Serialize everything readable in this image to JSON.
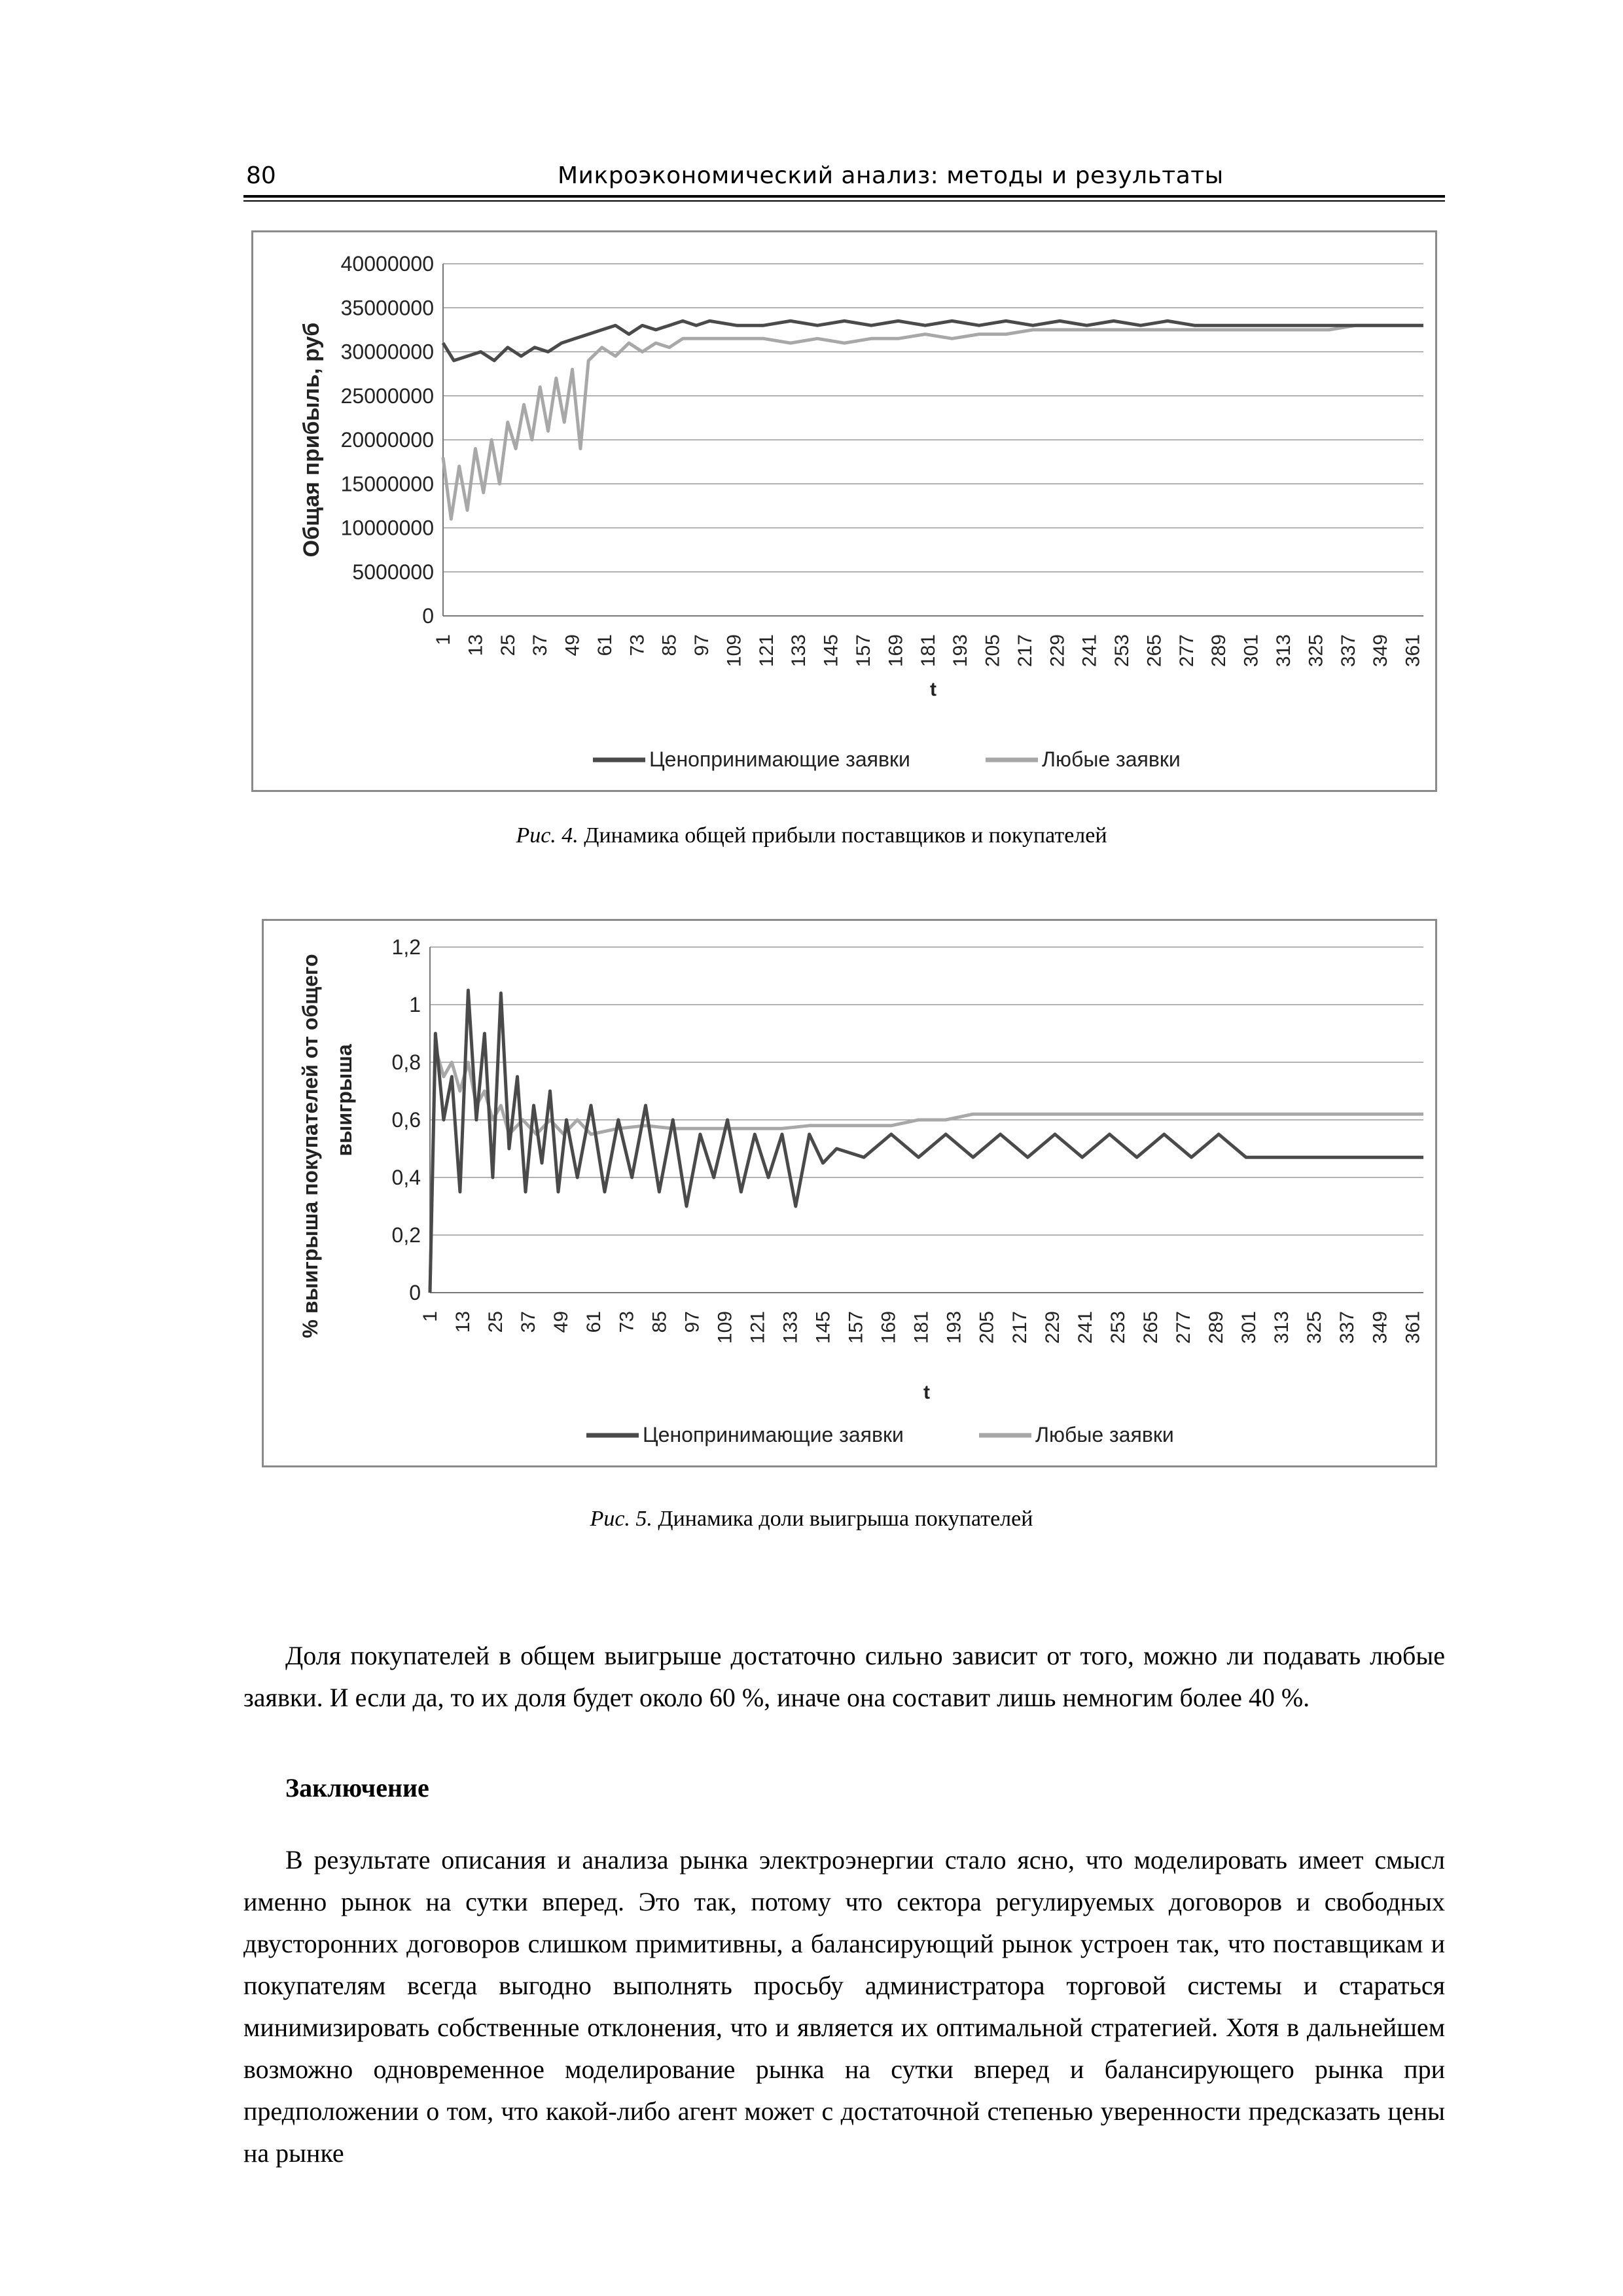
{
  "header": {
    "page_number": "80",
    "running_title": "Микроэкономический анализ: методы и результаты"
  },
  "figures": [
    {
      "caption_prefix": "Рис. 4.",
      "caption_text": "Динамика общей прибыли поставщиков и покупателей"
    },
    {
      "caption_prefix": "Рис. 5.",
      "caption_text": "Динамика доли выигрыша покупателей"
    }
  ],
  "chart_data": [
    {
      "type": "line",
      "xlabel": "t",
      "ylabel": "Общая прибыль, руб",
      "ylim": [
        0,
        40000000
      ],
      "yticks": [
        "0",
        "5000000",
        "10000000",
        "15000000",
        "20000000",
        "25000000",
        "30000000",
        "35000000",
        "40000000"
      ],
      "xticks": [
        "1",
        "13",
        "25",
        "37",
        "49",
        "61",
        "73",
        "85",
        "97",
        "109",
        "121",
        "133",
        "145",
        "157",
        "169",
        "181",
        "193",
        "205",
        "217",
        "229",
        "241",
        "253",
        "265",
        "277",
        "289",
        "301",
        "313",
        "325",
        "337",
        "349",
        "361"
      ],
      "x_range": [
        1,
        365
      ],
      "grid": "horizontal",
      "legend": "bottom",
      "series": [
        {
          "name": "Ценопринимающие заявки",
          "color": "#4a4a4a",
          "x": [
            1,
            5,
            10,
            15,
            20,
            25,
            30,
            35,
            40,
            45,
            50,
            55,
            60,
            65,
            70,
            75,
            80,
            85,
            90,
            95,
            100,
            110,
            120,
            130,
            140,
            150,
            160,
            170,
            180,
            190,
            200,
            210,
            220,
            230,
            240,
            250,
            260,
            270,
            280,
            290,
            300,
            310,
            320,
            330,
            340,
            350,
            360,
            365
          ],
          "values": [
            31000000,
            29000000,
            29500000,
            30000000,
            29000000,
            30500000,
            29500000,
            30500000,
            30000000,
            31000000,
            31500000,
            32000000,
            32500000,
            33000000,
            32000000,
            33000000,
            32500000,
            33000000,
            33500000,
            33000000,
            33500000,
            33000000,
            33000000,
            33500000,
            33000000,
            33500000,
            33000000,
            33500000,
            33000000,
            33500000,
            33000000,
            33500000,
            33000000,
            33500000,
            33000000,
            33500000,
            33000000,
            33500000,
            33000000,
            33000000,
            33000000,
            33000000,
            33000000,
            33000000,
            33000000,
            33000000,
            33000000,
            33000000
          ]
        },
        {
          "name": "Любые заявки",
          "color": "#a8a8a8",
          "x": [
            1,
            4,
            7,
            10,
            13,
            16,
            19,
            22,
            25,
            28,
            31,
            34,
            37,
            40,
            43,
            46,
            49,
            52,
            55,
            60,
            65,
            70,
            75,
            80,
            85,
            90,
            100,
            110,
            120,
            130,
            140,
            150,
            160,
            170,
            180,
            190,
            200,
            210,
            220,
            230,
            240,
            250,
            260,
            270,
            280,
            290,
            300,
            310,
            320,
            330,
            340,
            350,
            360,
            365
          ],
          "values": [
            18000000,
            11000000,
            17000000,
            12000000,
            19000000,
            14000000,
            20000000,
            15000000,
            22000000,
            19000000,
            24000000,
            20000000,
            26000000,
            21000000,
            27000000,
            22000000,
            28000000,
            19000000,
            29000000,
            30500000,
            29500000,
            31000000,
            30000000,
            31000000,
            30500000,
            31500000,
            31500000,
            31500000,
            31500000,
            31000000,
            31500000,
            31000000,
            31500000,
            31500000,
            32000000,
            31500000,
            32000000,
            32000000,
            32500000,
            32500000,
            32500000,
            32500000,
            32500000,
            32500000,
            32500000,
            32500000,
            32500000,
            32500000,
            32500000,
            32500000,
            33000000,
            33000000,
            33000000,
            33000000
          ]
        }
      ]
    },
    {
      "type": "line",
      "xlabel": "t",
      "ylabel": "% выигрыша покупателей  от общего выигрыша",
      "ylim": [
        0,
        1.2
      ],
      "yticks": [
        "0",
        "0,2",
        "0,4",
        "0,6",
        "0,8",
        "1",
        "1,2"
      ],
      "xticks": [
        "1",
        "13",
        "25",
        "37",
        "49",
        "61",
        "73",
        "85",
        "97",
        "109",
        "121",
        "133",
        "145",
        "157",
        "169",
        "181",
        "193",
        "205",
        "217",
        "229",
        "241",
        "253",
        "265",
        "277",
        "289",
        "301",
        "313",
        "325",
        "337",
        "349",
        "361"
      ],
      "x_range": [
        1,
        365
      ],
      "grid": "horizontal",
      "legend": "bottom",
      "series": [
        {
          "name": "Ценопринимающие заявки",
          "color": "#4a4a4a",
          "x": [
            1,
            3,
            6,
            9,
            12,
            15,
            18,
            21,
            24,
            27,
            30,
            33,
            36,
            39,
            42,
            45,
            48,
            51,
            55,
            60,
            65,
            70,
            75,
            80,
            85,
            90,
            95,
            100,
            105,
            110,
            115,
            120,
            125,
            130,
            135,
            140,
            145,
            150,
            160,
            170,
            180,
            190,
            200,
            210,
            220,
            230,
            240,
            250,
            260,
            270,
            280,
            290,
            300,
            310,
            320,
            330,
            340,
            350,
            360,
            365
          ],
          "values": [
            0.0,
            0.9,
            0.6,
            0.75,
            0.35,
            1.05,
            0.6,
            0.9,
            0.4,
            1.04,
            0.5,
            0.75,
            0.35,
            0.65,
            0.45,
            0.7,
            0.35,
            0.6,
            0.4,
            0.65,
            0.35,
            0.6,
            0.4,
            0.65,
            0.35,
            0.6,
            0.3,
            0.55,
            0.4,
            0.6,
            0.35,
            0.55,
            0.4,
            0.55,
            0.3,
            0.55,
            0.45,
            0.5,
            0.47,
            0.55,
            0.47,
            0.55,
            0.47,
            0.55,
            0.47,
            0.55,
            0.47,
            0.55,
            0.47,
            0.55,
            0.47,
            0.55,
            0.47,
            0.47,
            0.47,
            0.47,
            0.47,
            0.47,
            0.47,
            0.47
          ]
        },
        {
          "name": "Любые заявки",
          "color": "#a8a8a8",
          "x": [
            1,
            3,
            6,
            9,
            12,
            15,
            18,
            21,
            24,
            27,
            30,
            35,
            40,
            45,
            50,
            55,
            60,
            70,
            80,
            90,
            100,
            110,
            120,
            130,
            140,
            150,
            160,
            170,
            180,
            190,
            200,
            210,
            220,
            230,
            240,
            250,
            260,
            270,
            280,
            290,
            300,
            310,
            320,
            330,
            340,
            350,
            360,
            365
          ],
          "values": [
            0.0,
            0.85,
            0.75,
            0.8,
            0.7,
            0.8,
            0.65,
            0.7,
            0.6,
            0.65,
            0.55,
            0.6,
            0.55,
            0.6,
            0.55,
            0.6,
            0.55,
            0.57,
            0.58,
            0.57,
            0.57,
            0.57,
            0.57,
            0.57,
            0.58,
            0.58,
            0.58,
            0.58,
            0.6,
            0.6,
            0.62,
            0.62,
            0.62,
            0.62,
            0.62,
            0.62,
            0.62,
            0.62,
            0.62,
            0.62,
            0.62,
            0.62,
            0.62,
            0.62,
            0.62,
            0.62,
            0.62,
            0.62
          ]
        }
      ]
    }
  ],
  "body": {
    "paragraph1": "Доля покупателей в общем выигрыше достаточно сильно зависит от того, можно ли подавать любые заявки. И если да, то их доля будет около 60 %, иначе она составит лишь немногим более 40 %.",
    "section_title": "Заключение",
    "paragraph2": "В результате описания и анализа рынка электроэнергии стало ясно, что моделировать имеет смысл именно рынок на сутки вперед. Это так, потому что сектора регулируемых договоров и свободных двусторонних договоров слишком примитивны, а балансирующий рынок устроен так, что поставщикам и покупателям всегда выгодно выполнять просьбу администратора торговой системы и стараться минимизировать собственные отклонения, что и является их оптимальной стратегией. Хотя в дальнейшем возможно одновременное моделирование рынка на сутки вперед и балансирующего рынка при предположении о том, что какой-либо агент может с достаточной степенью уверенности предсказать цены на рынке"
  }
}
